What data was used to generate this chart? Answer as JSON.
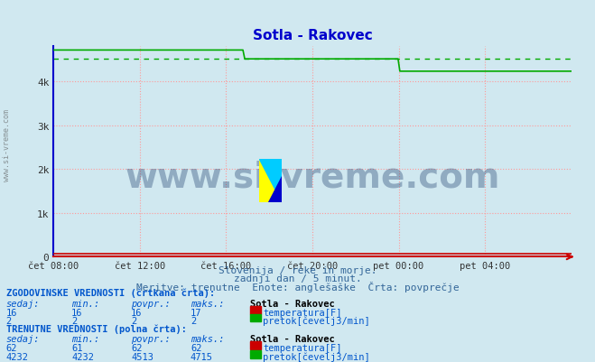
{
  "title": "Sotla - Rakovec",
  "background_color": "#d0e8f0",
  "plot_bg_color": "#d0e8f0",
  "fig_bg_color": "#d0e8f0",
  "subtitle_lines": [
    "Slovenija / reke in morje.",
    "zadnji dan / 5 minut.",
    "Meritve: trenutne  Enote: anglešaške  Črta: povprečje"
  ],
  "xlabel_ticks": [
    "čet 08:00",
    "čet 12:00",
    "čet 16:00",
    "čet 20:00",
    "pet 00:00",
    "pet 04:00"
  ],
  "xlabel_tick_positions": [
    0.0,
    0.1667,
    0.3333,
    0.5,
    0.6667,
    0.8333
  ],
  "ylabel_ticks": [
    "0",
    "1k",
    "2k",
    "3k",
    "4k"
  ],
  "ylabel_values": [
    0,
    1000,
    2000,
    3000,
    4000
  ],
  "ylim": [
    0,
    4800
  ],
  "watermark": "www.si-vreme.com",
  "grid_color": "#ff9999",
  "grid_linestyle": ":",
  "n_points": 288,
  "pretok_solid_color": "#00aa00",
  "pretok_dashed_color": "#00aa00",
  "temp_solid_color": "#cc0000",
  "temp_dashed_color": "#cc0000",
  "hist_temp_value": 16,
  "hist_temp_max": 17,
  "hist_pretok_value": 2,
  "curr_temp_sedaj": 62,
  "curr_temp_min": 61,
  "curr_temp_avg": 62,
  "curr_temp_max": 62,
  "curr_pretok_sedaj": 4232,
  "curr_pretok_min": 4232,
  "curr_pretok_avg": 4513,
  "curr_pretok_max": 4715,
  "table_text_color": "#0055aa",
  "table_label_color": "#004488",
  "logo_colors": [
    "#ffff00",
    "#00ccff",
    "#0000aa"
  ],
  "watermark_color": "#1a3a6a",
  "x_axis_color": "#cc0000",
  "y_axis_color": "#0000cc"
}
